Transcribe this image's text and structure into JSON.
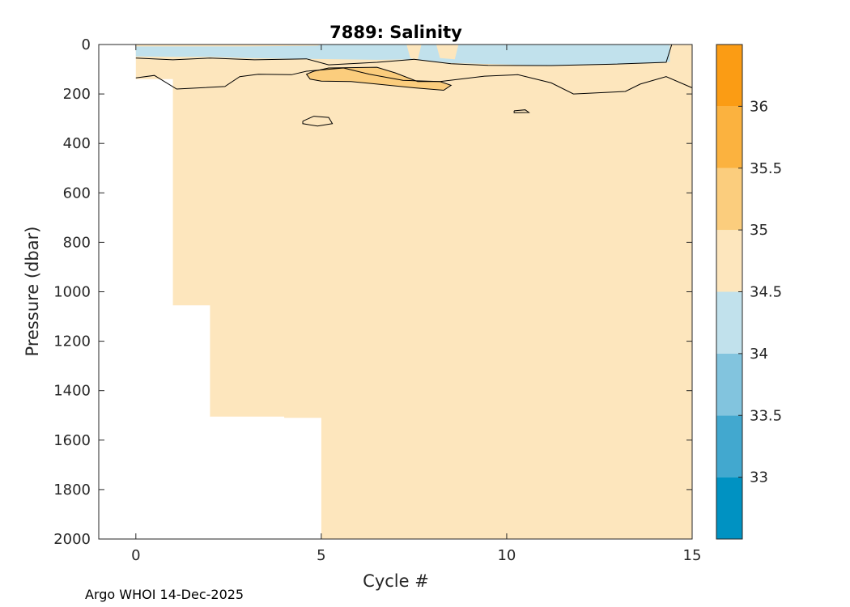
{
  "chart_data": {
    "type": "contour",
    "title": "7889:  Salinity",
    "xlabel": "Cycle #",
    "ylabel": "Pressure (dbar)",
    "xlim": [
      -1,
      15
    ],
    "ylim": [
      0,
      2000
    ],
    "y_reversed": true,
    "xticks": [
      0,
      5,
      10,
      15
    ],
    "yticks": [
      0,
      200,
      400,
      600,
      800,
      1000,
      1200,
      1400,
      1600,
      1800,
      2000
    ],
    "footer": "Argo WHOI 14-Dec-2025",
    "colorbar": {
      "range": [
        32.5,
        36.5
      ],
      "ticks": [
        33,
        33.5,
        34,
        34.5,
        35,
        35.5,
        36
      ],
      "levels": [
        {
          "min": 32.5,
          "max": 33.0,
          "color": "#0092c2"
        },
        {
          "min": 33.0,
          "max": 33.5,
          "color": "#42a8cf"
        },
        {
          "min": 33.5,
          "max": 34.0,
          "color": "#82c4de"
        },
        {
          "min": 34.0,
          "max": 34.5,
          "color": "#c1e1ec"
        },
        {
          "min": 34.5,
          "max": 35.0,
          "color": "#fde6bd"
        },
        {
          "min": 35.0,
          "max": 35.5,
          "color": "#fbcd7d"
        },
        {
          "min": 35.5,
          "max": 36.0,
          "color": "#fbb23f"
        },
        {
          "min": 36.0,
          "max": 36.5,
          "color": "#fb9c14"
        }
      ]
    },
    "profile_max_pressure": [
      {
        "cycle": 0,
        "max_pressure": 140
      },
      {
        "cycle": 1,
        "max_pressure": 1055
      },
      {
        "cycle": 2,
        "max_pressure": 1505
      },
      {
        "cycle": 3,
        "max_pressure": 1505
      },
      {
        "cycle": 4,
        "max_pressure": 1510
      },
      {
        "cycle": 5,
        "max_pressure": 2000
      },
      {
        "cycle": 6,
        "max_pressure": 2000
      },
      {
        "cycle": 7,
        "max_pressure": 2000
      },
      {
        "cycle": 8,
        "max_pressure": 2000
      },
      {
        "cycle": 9,
        "max_pressure": 2000
      },
      {
        "cycle": 10,
        "max_pressure": 2000
      },
      {
        "cycle": 11,
        "max_pressure": 2000
      },
      {
        "cycle": 12,
        "max_pressure": 2000
      },
      {
        "cycle": 13,
        "max_pressure": 2000
      },
      {
        "cycle": 14,
        "max_pressure": 2000
      },
      {
        "cycle": 15,
        "max_pressure": 2000
      }
    ],
    "background_level": 34.75,
    "regions": [
      {
        "name": "fresh-surface-layer",
        "level": 34.25,
        "points": [
          [
            0,
            8
          ],
          [
            3,
            8
          ],
          [
            4.9,
            5
          ],
          [
            5,
            0
          ],
          [
            7.3,
            0
          ],
          [
            7.4,
            55
          ],
          [
            7.6,
            62
          ],
          [
            7.7,
            0
          ],
          [
            8.1,
            0
          ],
          [
            8.2,
            55
          ],
          [
            8.6,
            60
          ],
          [
            8.7,
            0
          ],
          [
            14.4,
            0
          ],
          [
            14.4,
            70
          ],
          [
            13,
            80
          ],
          [
            11,
            85
          ],
          [
            8.5,
            75
          ],
          [
            7.5,
            60
          ],
          [
            6.5,
            62
          ],
          [
            5.5,
            60
          ],
          [
            4.5,
            58
          ],
          [
            3,
            55
          ],
          [
            2,
            50
          ],
          [
            1,
            50
          ],
          [
            0,
            48
          ]
        ]
      },
      {
        "name": "salty-subsurface-core",
        "level": 35.25,
        "points": [
          [
            4.8,
            108
          ],
          [
            5.2,
            95
          ],
          [
            6.5,
            92
          ],
          [
            7,
            115
          ],
          [
            7.6,
            150
          ],
          [
            8.2,
            150
          ],
          [
            8.5,
            165
          ],
          [
            8.3,
            185
          ],
          [
            7.5,
            175
          ],
          [
            6.5,
            160
          ],
          [
            5.8,
            150
          ],
          [
            5,
            148
          ],
          [
            4.7,
            140
          ],
          [
            4.6,
            120
          ]
        ]
      }
    ],
    "contours": [
      {
        "name": "contour-34p5-upper",
        "level": 34.5,
        "points": [
          [
            0,
            55
          ],
          [
            1,
            62
          ],
          [
            2,
            55
          ],
          [
            3.2,
            62
          ],
          [
            4.6,
            58
          ],
          [
            5.2,
            82
          ],
          [
            6.5,
            72
          ],
          [
            7.5,
            60
          ],
          [
            8.5,
            78
          ],
          [
            9.5,
            84
          ],
          [
            11.2,
            85
          ],
          [
            12.8,
            80
          ],
          [
            14.3,
            72
          ],
          [
            14.45,
            0
          ]
        ]
      },
      {
        "name": "contour-34p5-base",
        "level": 34.5,
        "points": [
          [
            0,
            135
          ],
          [
            0.5,
            125
          ],
          [
            1.1,
            180
          ],
          [
            2.4,
            170
          ],
          [
            2.8,
            130
          ],
          [
            3.3,
            120
          ],
          [
            4.2,
            122
          ],
          [
            4.6,
            108
          ],
          [
            5.6,
            95
          ],
          [
            6.3,
            120
          ],
          [
            7.2,
            145
          ],
          [
            8.2,
            150
          ],
          [
            9.4,
            128
          ],
          [
            10.3,
            122
          ],
          [
            11.2,
            155
          ],
          [
            11.8,
            200
          ],
          [
            13.2,
            190
          ],
          [
            13.6,
            160
          ],
          [
            14.3,
            130
          ],
          [
            15,
            175
          ]
        ]
      },
      {
        "name": "contour-35-core",
        "level": 35.0,
        "points": [
          [
            4.8,
            108
          ],
          [
            5.2,
            95
          ],
          [
            6.5,
            92
          ],
          [
            7,
            115
          ],
          [
            7.6,
            150
          ],
          [
            8.2,
            150
          ],
          [
            8.5,
            165
          ],
          [
            8.3,
            185
          ],
          [
            7.5,
            175
          ],
          [
            6.5,
            160
          ],
          [
            5.8,
            150
          ],
          [
            5,
            148
          ],
          [
            4.7,
            140
          ],
          [
            4.6,
            120
          ],
          [
            4.8,
            108
          ]
        ]
      },
      {
        "name": "contour-lens-300",
        "level": 34.5,
        "points": [
          [
            4.5,
            310
          ],
          [
            4.8,
            290
          ],
          [
            5.2,
            295
          ],
          [
            5.3,
            320
          ],
          [
            4.9,
            330
          ],
          [
            4.5,
            320
          ],
          [
            4.5,
            310
          ]
        ]
      },
      {
        "name": "contour-lens-270",
        "level": 34.5,
        "points": [
          [
            10.2,
            268
          ],
          [
            10.5,
            264
          ],
          [
            10.6,
            275
          ],
          [
            10.2,
            276
          ],
          [
            10.2,
            268
          ]
        ]
      }
    ]
  }
}
